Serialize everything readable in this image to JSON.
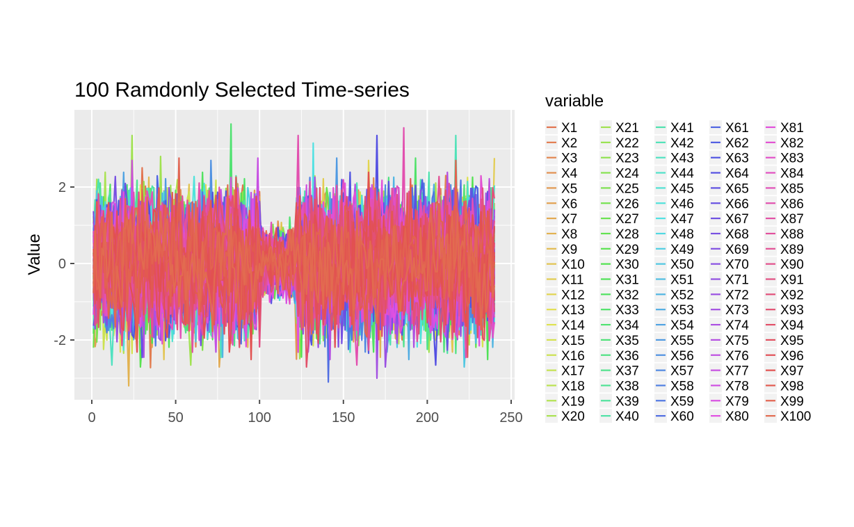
{
  "chart_data": {
    "type": "line",
    "title": "100 Ramdonly Selected Time-series",
    "xlabel": "",
    "ylabel": "Value",
    "xlim": [
      0,
      240
    ],
    "ylim": [
      -3.3,
      3.7
    ],
    "x_ticks": [
      0,
      50,
      100,
      150,
      200,
      250
    ],
    "x_tick_labels": [
      "0",
      "50",
      "100",
      "150",
      "200",
      "250"
    ],
    "y_ticks": [
      -2,
      0,
      2
    ],
    "y_tick_labels": [
      "-2",
      "0",
      "2"
    ],
    "grid": true,
    "legend": {
      "title": "variable",
      "position": "right",
      "columns": 5
    },
    "series_names": [
      "X1",
      "X2",
      "X3",
      "X4",
      "X5",
      "X6",
      "X7",
      "X8",
      "X9",
      "X10",
      "X11",
      "X12",
      "X13",
      "X14",
      "X15",
      "X16",
      "X17",
      "X18",
      "X19",
      "X20",
      "X21",
      "X22",
      "X23",
      "X24",
      "X25",
      "X26",
      "X27",
      "X28",
      "X29",
      "X30",
      "X31",
      "X32",
      "X33",
      "X34",
      "X35",
      "X36",
      "X37",
      "X38",
      "X39",
      "X40",
      "X41",
      "X42",
      "X43",
      "X44",
      "X45",
      "X46",
      "X47",
      "X48",
      "X49",
      "X50",
      "X51",
      "X52",
      "X53",
      "X54",
      "X55",
      "X56",
      "X57",
      "X58",
      "X59",
      "X60",
      "X61",
      "X62",
      "X63",
      "X64",
      "X65",
      "X66",
      "X67",
      "X68",
      "X69",
      "X70",
      "X71",
      "X72",
      "X73",
      "X74",
      "X75",
      "X76",
      "X77",
      "X78",
      "X79",
      "X80",
      "X81",
      "X82",
      "X83",
      "X84",
      "X85",
      "X86",
      "X87",
      "X88",
      "X89",
      "X90",
      "X91",
      "X92",
      "X93",
      "X94",
      "X95",
      "X96",
      "X97",
      "X98",
      "X99",
      "X100"
    ],
    "series_x": [
      1,
      240
    ],
    "notable_points": [
      {
        "x": 22,
        "y": -3.2
      },
      {
        "x": 41,
        "y": 2.8
      },
      {
        "x": 83,
        "y": 3.65
      },
      {
        "x": 132,
        "y": 3.15
      },
      {
        "x": 141,
        "y": -3.1
      },
      {
        "x": 170,
        "y": -3.0
      },
      {
        "x": 186,
        "y": 3.55
      }
    ],
    "value_envelope": {
      "min": -3.2,
      "max": 3.65,
      "typical_abs": 2.0
    }
  },
  "colors": {
    "panel_bg": "#EBEBEB",
    "grid_major": "#FFFFFF",
    "text_axis": "#4D4D4D",
    "hue_start": 15,
    "hue_end": 375
  }
}
